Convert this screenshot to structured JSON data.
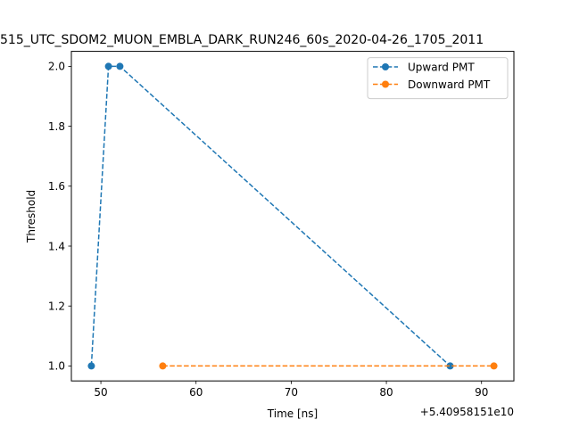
{
  "chart_data": {
    "type": "line",
    "title": "515_UTC_SDOM2_MUON_EMBLA_DARK_RUN246_60s_2020-04-26_1705_2011",
    "xlabel": "Time [ns]",
    "ylabel": "Threshold",
    "x_offset_label": "+5.40958151e10",
    "xlim": [
      46.9,
      93.4
    ],
    "ylim": [
      0.95,
      2.05
    ],
    "xticks": [
      50,
      60,
      70,
      80,
      90
    ],
    "yticks": [
      1.0,
      1.2,
      1.4,
      1.6,
      1.8,
      2.0
    ],
    "xtick_labels": [
      "50",
      "60",
      "70",
      "80",
      "90"
    ],
    "ytick_labels": [
      "1.0",
      "1.2",
      "1.4",
      "1.6",
      "1.8",
      "2.0"
    ],
    "legend_position": "top-right",
    "grid": false,
    "series": [
      {
        "name": "Upward PMT",
        "color": "#1f77b4",
        "x": [
          49.0,
          50.8,
          52.0,
          86.7
        ],
        "y": [
          1.0,
          2.0,
          2.0,
          1.0
        ]
      },
      {
        "name": "Downward PMT",
        "color": "#ff7f0e",
        "x": [
          56.5,
          91.3
        ],
        "y": [
          1.0,
          1.0
        ]
      }
    ]
  }
}
